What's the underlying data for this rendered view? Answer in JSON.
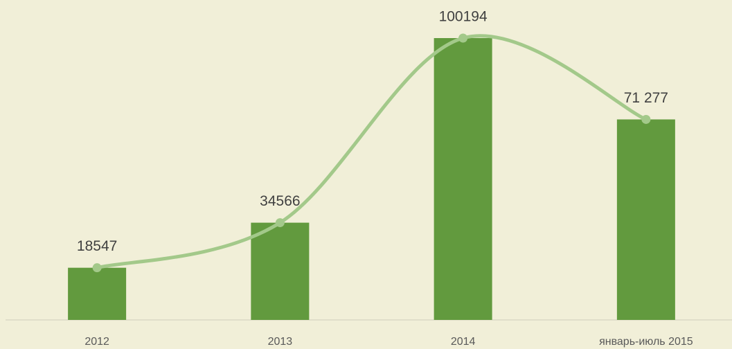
{
  "chart_data": {
    "type": "bar",
    "categories": [
      "2012",
      "2013",
      "2014",
      "январь-июль 2015"
    ],
    "values": [
      18547,
      34566,
      100194,
      71277
    ],
    "value_labels": [
      "18547",
      "34566",
      "100194",
      "71 277"
    ],
    "color": "#629a3e",
    "line_color": "#a3c98a"
  }
}
